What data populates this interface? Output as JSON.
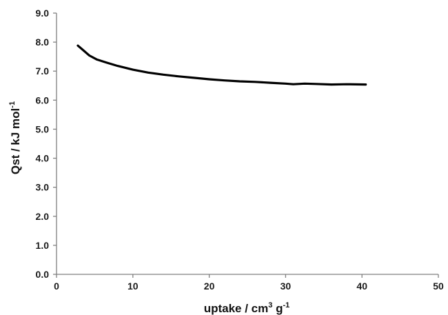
{
  "chart_data": {
    "type": "line",
    "title": "",
    "xlabel": {
      "base": "uptake / cm",
      "sup1": "3",
      "mid": " g",
      "sup2": "-1"
    },
    "ylabel": {
      "base": "Qst / kJ mol",
      "sup": "-1"
    },
    "xlim": [
      0,
      50
    ],
    "ylim": [
      0,
      9
    ],
    "xticks": [
      0,
      10,
      20,
      30,
      40,
      50
    ],
    "yticks": [
      0,
      1,
      2,
      3,
      4,
      5,
      6,
      7,
      8,
      9
    ],
    "ytick_labels": [
      "0.0",
      "1.0",
      "2.0",
      "3.0",
      "4.0",
      "5.0",
      "6.0",
      "7.0",
      "8.0",
      "9.0"
    ],
    "grid": false,
    "legend": "none",
    "series": [
      {
        "color": "#000000",
        "x": [
          2.8,
          3.5,
          4.3,
          5.3,
          6.5,
          8,
          10,
          12,
          14,
          16,
          18,
          20,
          22,
          24,
          26,
          28,
          30,
          31,
          32.5,
          34,
          36,
          38,
          40.5
        ],
        "y": [
          7.88,
          7.72,
          7.54,
          7.4,
          7.3,
          7.18,
          7.05,
          6.95,
          6.88,
          6.82,
          6.77,
          6.72,
          6.68,
          6.65,
          6.63,
          6.6,
          6.57,
          6.55,
          6.57,
          6.56,
          6.54,
          6.55,
          6.54
        ]
      }
    ]
  }
}
